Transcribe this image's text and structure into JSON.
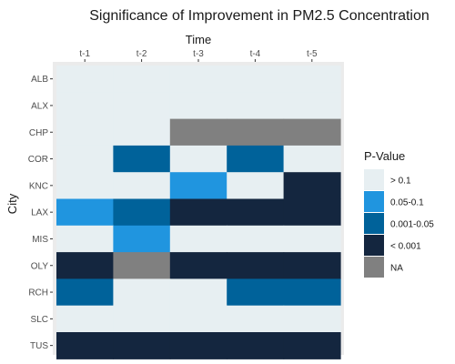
{
  "chart_data": {
    "type": "heatmap",
    "title": "Significance of Improvement in PM2.5 Concentration",
    "xlabel": "Time",
    "ylabel": "City",
    "x_position": "top",
    "x": [
      "t-1",
      "t-2",
      "t-3",
      "t-4",
      "t-5"
    ],
    "y": [
      "ALB",
      "ALX",
      "CHP",
      "COR",
      "KNC",
      "LAX",
      "MIS",
      "OLY",
      "RCH",
      "SLC",
      "TUS"
    ],
    "values": [
      [
        "> 0.1",
        "> 0.1",
        "> 0.1",
        "> 0.1",
        "> 0.1"
      ],
      [
        "> 0.1",
        "> 0.1",
        "> 0.1",
        "> 0.1",
        "> 0.1"
      ],
      [
        "> 0.1",
        "> 0.1",
        "NA",
        "NA",
        "NA"
      ],
      [
        "> 0.1",
        "0.001-0.05",
        "> 0.1",
        "0.001-0.05",
        "> 0.1"
      ],
      [
        "> 0.1",
        "> 0.1",
        "0.05-0.1",
        "> 0.1",
        "< 0.001"
      ],
      [
        "0.05-0.1",
        "0.001-0.05",
        "< 0.001",
        "< 0.001",
        "< 0.001"
      ],
      [
        "> 0.1",
        "0.05-0.1",
        "> 0.1",
        "> 0.1",
        "> 0.1"
      ],
      [
        "< 0.001",
        "NA",
        "< 0.001",
        "< 0.001",
        "< 0.001"
      ],
      [
        "0.001-0.05",
        "> 0.1",
        "> 0.1",
        "0.001-0.05",
        "0.001-0.05"
      ],
      [
        "> 0.1",
        "> 0.1",
        "> 0.1",
        "> 0.1",
        "> 0.1"
      ],
      [
        "< 0.001",
        "< 0.001",
        "< 0.001",
        "< 0.001",
        "< 0.001"
      ]
    ],
    "legend": {
      "title": "P-Value",
      "placement": "right",
      "items": [
        {
          "label": "> 0.1",
          "color": "#e7eff2"
        },
        {
          "label": "0.05-0.1",
          "color": "#2095df"
        },
        {
          "label": "0.001-0.05",
          "color": "#00629a"
        },
        {
          "label": "< 0.001",
          "color": "#14263f"
        },
        {
          "label": "NA",
          "color": "#808080"
        }
      ]
    },
    "panel_background": "#ebebeb",
    "grid": true
  }
}
